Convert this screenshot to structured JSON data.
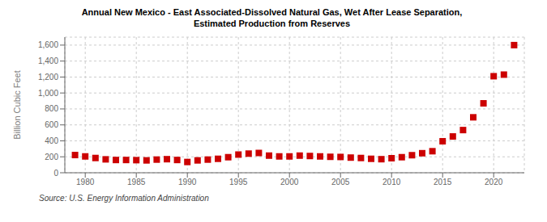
{
  "chart_data": {
    "type": "scatter",
    "title": "Annual New Mexico - East Associated-Dissolved Natural Gas, Wet After Lease Separation,\nEstimated Production from Reserves",
    "ylabel": "Billion Cubic Feet",
    "source": "Source: U.S. Energy Information Administration",
    "x": [
      1979,
      1980,
      1981,
      1982,
      1983,
      1984,
      1985,
      1986,
      1987,
      1988,
      1989,
      1990,
      1991,
      1992,
      1993,
      1994,
      1995,
      1996,
      1997,
      1998,
      1999,
      2000,
      2001,
      2002,
      2003,
      2004,
      2005,
      2006,
      2007,
      2008,
      2009,
      2010,
      2011,
      2012,
      2013,
      2014,
      2015,
      2016,
      2017,
      2018,
      2019,
      2020,
      2021,
      2022
    ],
    "values": [
      222,
      205,
      185,
      168,
      160,
      160,
      158,
      155,
      165,
      170,
      160,
      135,
      155,
      165,
      175,
      195,
      228,
      240,
      248,
      215,
      205,
      205,
      215,
      210,
      205,
      200,
      198,
      190,
      185,
      175,
      170,
      182,
      195,
      220,
      245,
      270,
      395,
      455,
      535,
      695,
      870,
      1210,
      1230,
      1600
    ],
    "color": "#cc0000",
    "marker": "square",
    "xlim": [
      1978,
      2023
    ],
    "ylim": [
      0,
      1700
    ],
    "xticks": [
      1980,
      1985,
      1990,
      1995,
      2000,
      2005,
      2010,
      2015,
      2020
    ],
    "yticks": [
      0,
      200,
      400,
      600,
      800,
      {
        "value": 1000,
        "label": "1,000"
      },
      {
        "value": 1200,
        "label": "1,200"
      },
      {
        "value": 1400,
        "label": "1,400"
      },
      {
        "value": 1600,
        "label": "1,600"
      }
    ],
    "grid": true
  }
}
